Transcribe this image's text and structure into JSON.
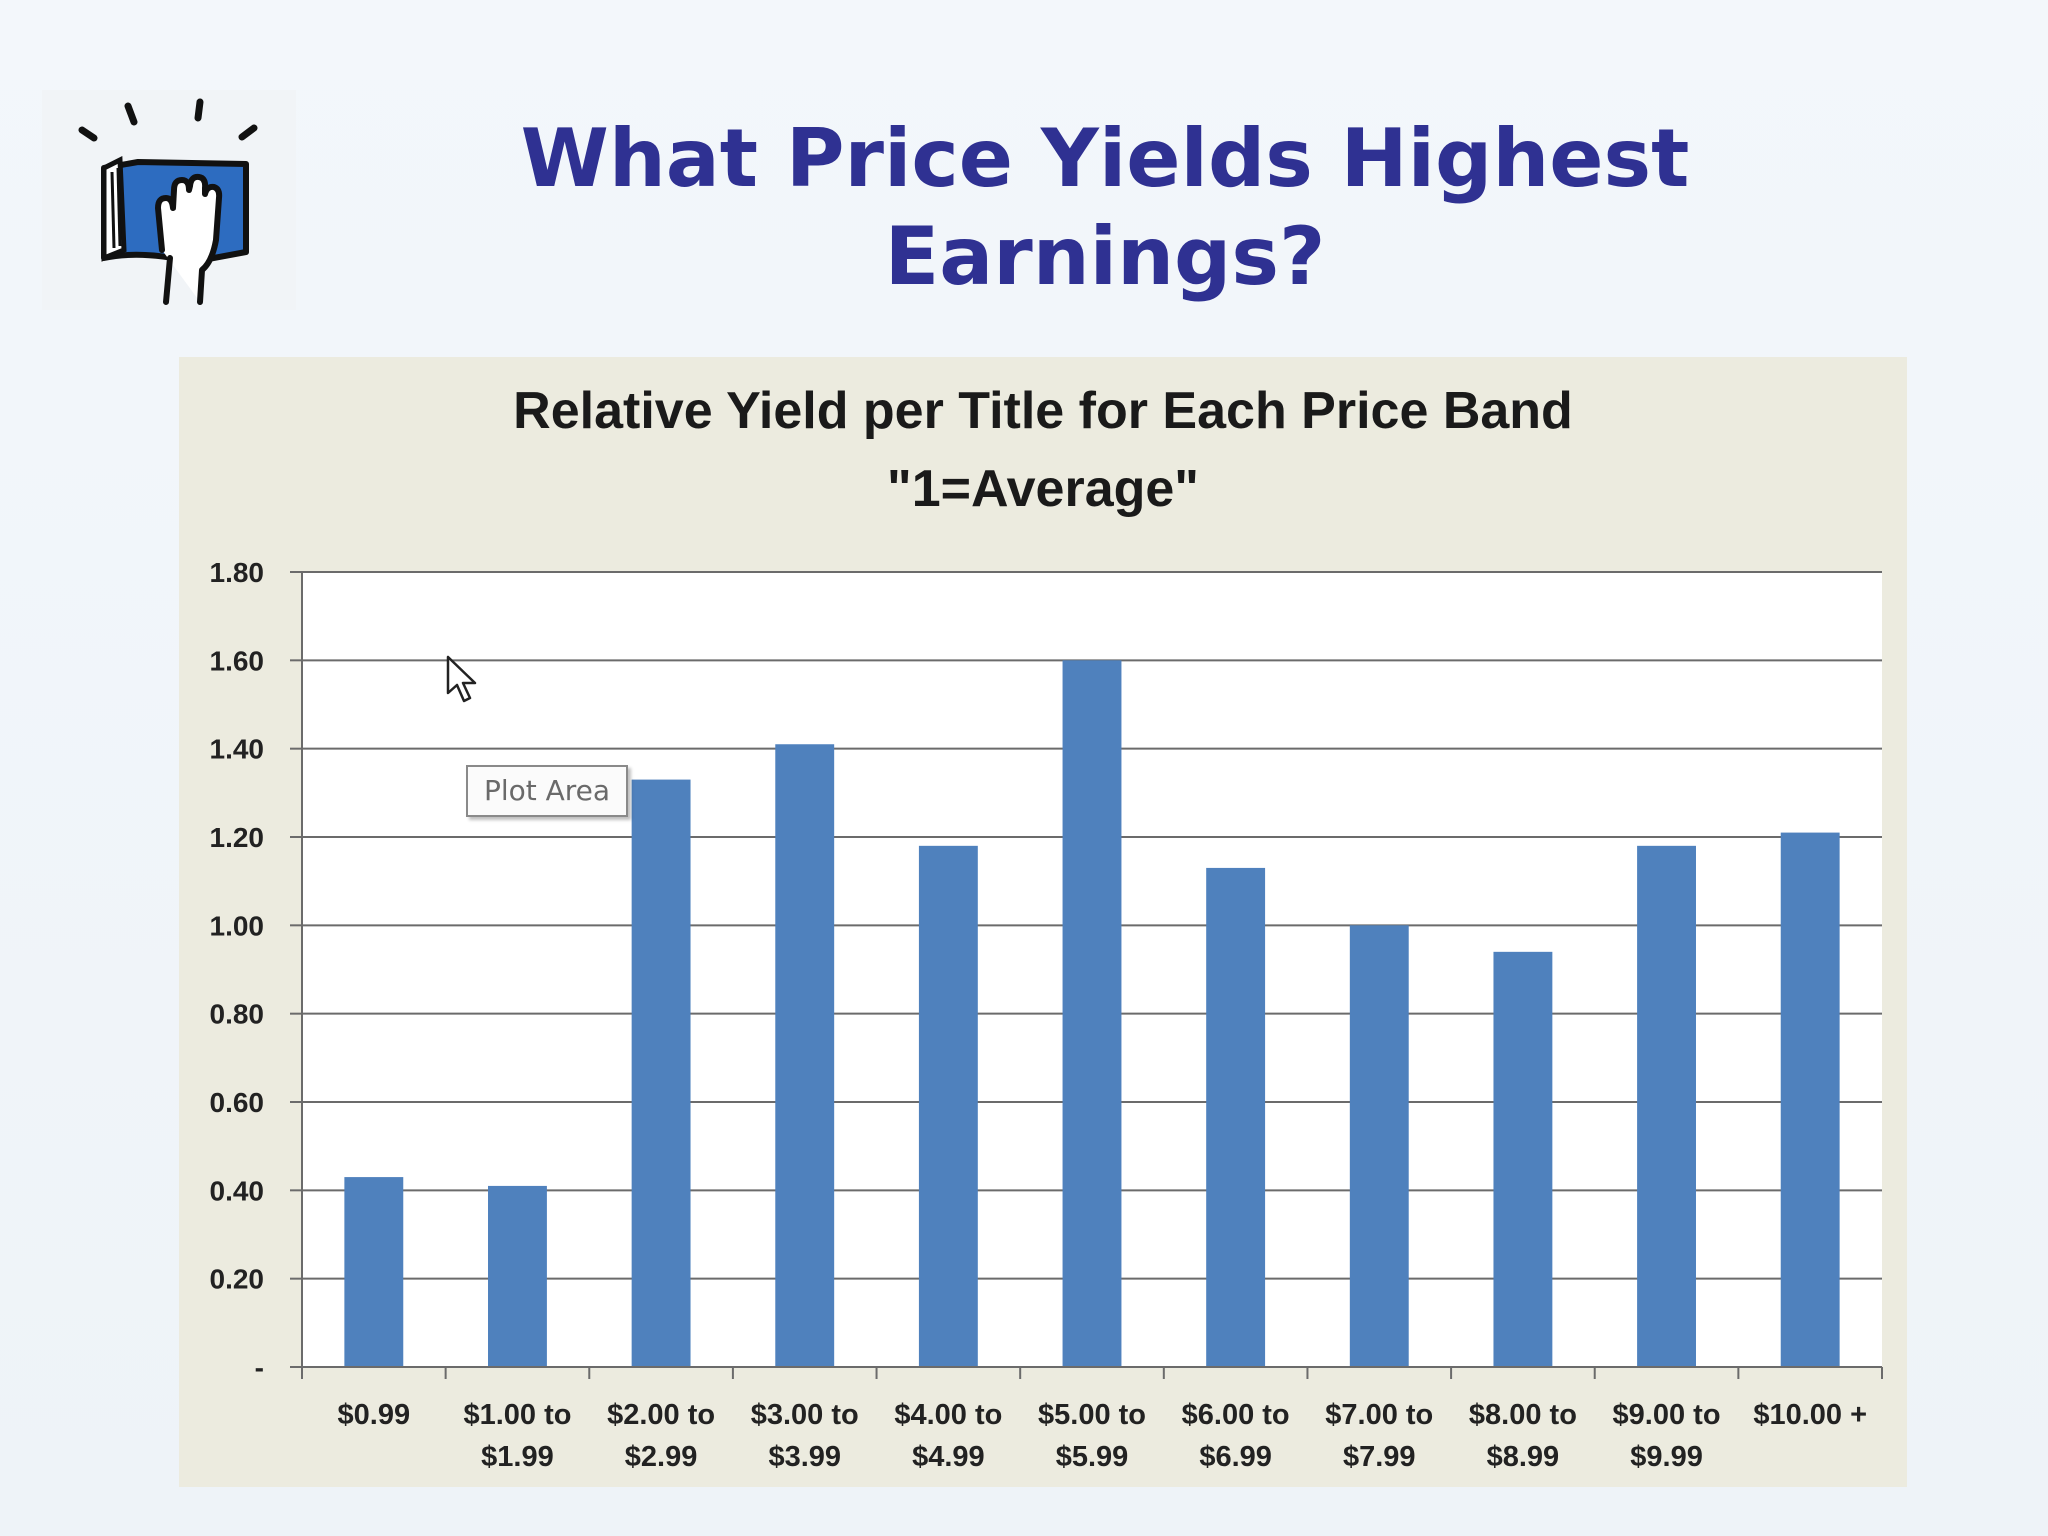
{
  "slide": {
    "title_line1": "What Price Yields Highest",
    "title_line2": "Earnings?",
    "logo_icon": "hand-on-book-icon"
  },
  "tooltip": {
    "text": "Plot Area"
  },
  "chart_data": {
    "type": "bar",
    "title": "Relative Yield per Title for Each Price Band",
    "subtitle": "\"1=Average\"",
    "xlabel": "",
    "ylabel": "",
    "ylim": [
      0,
      1.8
    ],
    "yticks": [
      0,
      0.2,
      0.4,
      0.6,
      0.8,
      1.0,
      1.2,
      1.4,
      1.6,
      1.8
    ],
    "ytick_labels": [
      "-",
      "0.20",
      "0.40",
      "0.60",
      "0.80",
      "1.00",
      "1.20",
      "1.40",
      "1.60",
      "1.80"
    ],
    "categories": [
      [
        "$0.99"
      ],
      [
        "$1.00 to",
        "$1.99"
      ],
      [
        "$2.00 to",
        "$2.99"
      ],
      [
        "$3.00 to",
        "$3.99"
      ],
      [
        "$4.00 to",
        "$4.99"
      ],
      [
        "$5.00 to",
        "$5.99"
      ],
      [
        "$6.00 to",
        "$6.99"
      ],
      [
        "$7.00  to",
        "$7.99"
      ],
      [
        "$8.00 to",
        "$8.99"
      ],
      [
        "$9.00 to",
        "$9.99"
      ],
      [
        "$10.00 +"
      ]
    ],
    "values": [
      0.43,
      0.41,
      1.33,
      1.41,
      1.18,
      1.6,
      1.13,
      1.0,
      0.94,
      1.18,
      1.21
    ],
    "grid": true,
    "bar_color": "#4f81bd",
    "legend": "none"
  }
}
